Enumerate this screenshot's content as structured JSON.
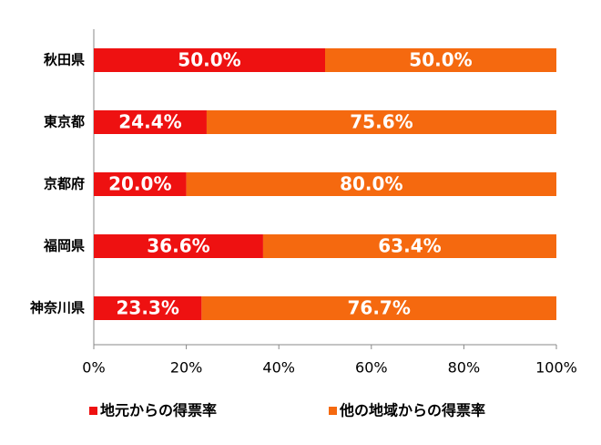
{
  "chart_data": {
    "type": "stacked-bar-horizontal",
    "categories": [
      "秋田県",
      "東京都",
      "京都府",
      "福岡県",
      "神奈川県"
    ],
    "series": [
      {
        "name": "地元からの得票率",
        "color": "#ee1111",
        "values": [
          50.0,
          24.4,
          20.0,
          36.6,
          23.3
        ],
        "value_labels": [
          "50.0%",
          "24.4%",
          "20.0%",
          "36.6%",
          "23.3%"
        ]
      },
      {
        "name": "他の地域からの得票率",
        "color": "#f5690f",
        "values": [
          50.0,
          75.6,
          80.0,
          63.4,
          76.7
        ],
        "value_labels": [
          "50.0%",
          "75.6%",
          "80.0%",
          "63.4%",
          "76.7%"
        ]
      }
    ],
    "xlim": [
      0,
      100
    ],
    "xticks": [
      {
        "value": 0,
        "label": "0%"
      },
      {
        "value": 20,
        "label": "20%"
      },
      {
        "value": 40,
        "label": "40%"
      },
      {
        "value": 60,
        "label": "60%"
      },
      {
        "value": 80,
        "label": "80%"
      },
      {
        "value": 100,
        "label": "100%"
      }
    ],
    "legend": "bottom"
  }
}
